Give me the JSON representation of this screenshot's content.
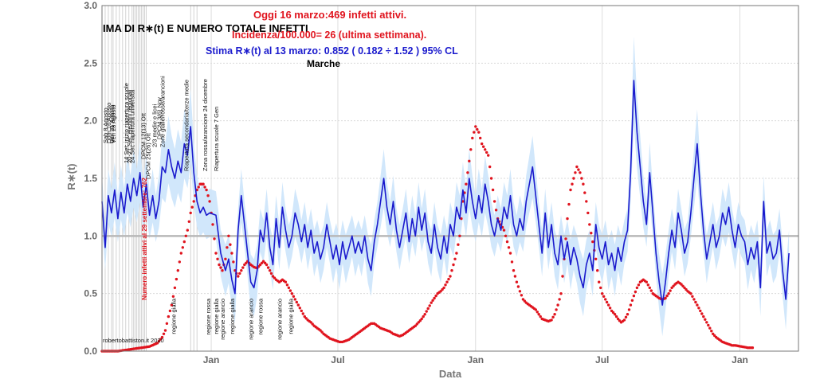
{
  "chart_data": {
    "type": "line",
    "title_lines": [
      {
        "text": "IMA DI R∗(t) E NUMERO TOTALE INFETTI",
        "color": "#000000"
      },
      {
        "text": "Oggi 16 marzo:469 infetti attivi.",
        "color": "#e0141e"
      },
      {
        "text": "Incidenza/100.000= 26 (ultima settimana).",
        "color": "#e0141e"
      },
      {
        "text": "Stima R∗(t) al 13 marzo: 0.852 ( 0.182 ÷ 1.52 ) 95% CL",
        "color": "#1a1acd"
      },
      {
        "text": "Marche",
        "color": "#000000"
      }
    ],
    "xlabel": "Data",
    "ylabel": "R∗(t)",
    "ylim": [
      0,
      3
    ],
    "yticks": [
      "0.0",
      "0.5",
      "1.0",
      "1.5",
      "2.0",
      "2.5",
      "3.0"
    ],
    "xticks": [
      "Jan",
      "Jul",
      "Jan",
      "Jul",
      "Jan"
    ],
    "reference_line": 1.0,
    "grid": true,
    "credit": "robertobattiston.it 2020",
    "side_note": "Numero infetti attivi al 29 settembre: 762",
    "series": [],
    "blue_points": [
      [
        0,
        1.3
      ],
      [
        2,
        0.9
      ],
      [
        4,
        1.35
      ],
      [
        6,
        1.2
      ],
      [
        8,
        1.4
      ],
      [
        10,
        1.15
      ],
      [
        12,
        1.38
      ],
      [
        14,
        1.2
      ],
      [
        16,
        1.45
      ],
      [
        18,
        1.3
      ],
      [
        20,
        1.5
      ],
      [
        22,
        1.35
      ],
      [
        24,
        1.55
      ],
      [
        26,
        1.25
      ],
      [
        28,
        1.45
      ],
      [
        30,
        1.18
      ],
      [
        32,
        1.35
      ],
      [
        34,
        1.15
      ],
      [
        36,
        1.3
      ],
      [
        38,
        1.6
      ],
      [
        40,
        1.55
      ],
      [
        42,
        1.75
      ],
      [
        44,
        1.6
      ],
      [
        46,
        1.5
      ],
      [
        48,
        1.65
      ],
      [
        50,
        1.55
      ],
      [
        52,
        1.8
      ],
      [
        54,
        1.7
      ],
      [
        56,
        1.95
      ],
      [
        58,
        1.55
      ],
      [
        60,
        1.3
      ],
      [
        62,
        1.2
      ],
      [
        64,
        1.25
      ],
      [
        66,
        1.18
      ],
      [
        68,
        1.2
      ],
      [
        72,
        1.18
      ],
      [
        75,
        0.85
      ],
      [
        78,
        0.7
      ],
      [
        80,
        0.8
      ],
      [
        82,
        0.62
      ],
      [
        84,
        0.5
      ],
      [
        86,
        1.05
      ],
      [
        88,
        1.35
      ],
      [
        90,
        1.1
      ],
      [
        92,
        0.85
      ],
      [
        94,
        0.6
      ],
      [
        96,
        0.55
      ],
      [
        98,
        0.7
      ],
      [
        100,
        1.05
      ],
      [
        102,
        0.95
      ],
      [
        104,
        1.2
      ],
      [
        106,
        0.9
      ],
      [
        108,
        0.75
      ],
      [
        110,
        1.15
      ],
      [
        112,
        0.9
      ],
      [
        114,
        1.25
      ],
      [
        116,
        1.05
      ],
      [
        118,
        0.9
      ],
      [
        120,
        1.0
      ],
      [
        122,
        1.2
      ],
      [
        124,
        1.1
      ],
      [
        126,
        0.95
      ],
      [
        128,
        1.1
      ],
      [
        130,
        0.9
      ],
      [
        132,
        1.05
      ],
      [
        134,
        0.85
      ],
      [
        136,
        0.95
      ],
      [
        138,
        0.8
      ],
      [
        140,
        0.9
      ],
      [
        142,
        1.1
      ],
      [
        144,
        0.95
      ],
      [
        146,
        0.8
      ],
      [
        148,
        0.92
      ],
      [
        150,
        0.75
      ],
      [
        152,
        0.95
      ],
      [
        154,
        0.8
      ],
      [
        156,
        0.9
      ],
      [
        158,
        1.0
      ],
      [
        160,
        0.85
      ],
      [
        162,
        0.95
      ],
      [
        164,
        0.85
      ],
      [
        166,
        1.0
      ],
      [
        168,
        0.8
      ],
      [
        170,
        0.7
      ],
      [
        172,
        0.95
      ],
      [
        174,
        1.1
      ],
      [
        176,
        1.3
      ],
      [
        178,
        1.5
      ],
      [
        180,
        1.25
      ],
      [
        182,
        1.1
      ],
      [
        184,
        1.3
      ],
      [
        186,
        1.05
      ],
      [
        188,
        0.9
      ],
      [
        190,
        1.05
      ],
      [
        192,
        1.2
      ],
      [
        194,
        0.95
      ],
      [
        196,
        1.15
      ],
      [
        198,
        1.0
      ],
      [
        200,
        1.25
      ],
      [
        202,
        1.05
      ],
      [
        204,
        1.2
      ],
      [
        206,
        0.95
      ],
      [
        208,
        0.85
      ],
      [
        210,
        1.1
      ],
      [
        212,
        0.9
      ],
      [
        214,
        0.8
      ],
      [
        216,
        1.0
      ],
      [
        218,
        0.85
      ],
      [
        220,
        1.1
      ],
      [
        222,
        1.0
      ],
      [
        224,
        1.25
      ],
      [
        226,
        1.15
      ],
      [
        228,
        1.4
      ],
      [
        230,
        1.2
      ],
      [
        232,
        1.5
      ],
      [
        234,
        1.3
      ],
      [
        236,
        1.15
      ],
      [
        238,
        1.35
      ],
      [
        240,
        1.2
      ],
      [
        242,
        1.45
      ],
      [
        244,
        1.3
      ],
      [
        246,
        1.1
      ],
      [
        248,
        1.0
      ],
      [
        250,
        1.15
      ],
      [
        252,
        1.05
      ],
      [
        254,
        1.25
      ],
      [
        256,
        1.15
      ],
      [
        258,
        1.35
      ],
      [
        260,
        1.1
      ],
      [
        262,
        1.0
      ],
      [
        264,
        1.15
      ],
      [
        266,
        1.05
      ],
      [
        268,
        1.3
      ],
      [
        270,
        1.45
      ],
      [
        272,
        1.6
      ],
      [
        274,
        1.35
      ],
      [
        276,
        1.1
      ],
      [
        278,
        0.85
      ],
      [
        280,
        1.2
      ],
      [
        282,
        0.9
      ],
      [
        284,
        1.1
      ],
      [
        286,
        0.85
      ],
      [
        288,
        0.75
      ],
      [
        290,
        1.0
      ],
      [
        292,
        0.8
      ],
      [
        294,
        0.95
      ],
      [
        296,
        0.75
      ],
      [
        298,
        0.9
      ],
      [
        300,
        0.8
      ],
      [
        302,
        0.65
      ],
      [
        304,
        0.55
      ],
      [
        306,
        0.75
      ],
      [
        308,
        0.85
      ],
      [
        310,
        0.7
      ],
      [
        312,
        1.1
      ],
      [
        314,
        0.9
      ],
      [
        316,
        0.8
      ],
      [
        318,
        0.95
      ],
      [
        320,
        0.75
      ],
      [
        322,
        0.85
      ],
      [
        324,
        0.7
      ],
      [
        326,
        0.9
      ],
      [
        328,
        0.78
      ],
      [
        330,
        0.95
      ],
      [
        332,
        1.05
      ],
      [
        334,
        1.55
      ],
      [
        336,
        2.35
      ],
      [
        338,
        1.9
      ],
      [
        340,
        1.6
      ],
      [
        342,
        1.3
      ],
      [
        344,
        1.1
      ],
      [
        346,
        1.55
      ],
      [
        348,
        1.2
      ],
      [
        350,
        0.85
      ],
      [
        352,
        0.6
      ],
      [
        354,
        0.4
      ],
      [
        356,
        0.6
      ],
      [
        358,
        0.85
      ],
      [
        360,
        1.05
      ],
      [
        362,
        0.9
      ],
      [
        364,
        1.2
      ],
      [
        366,
        1.05
      ],
      [
        368,
        0.85
      ],
      [
        370,
        0.95
      ],
      [
        372,
        1.2
      ],
      [
        374,
        1.5
      ],
      [
        376,
        1.8
      ],
      [
        378,
        1.4
      ],
      [
        380,
        1.05
      ],
      [
        382,
        0.8
      ],
      [
        384,
        0.95
      ],
      [
        386,
        1.1
      ],
      [
        388,
        0.9
      ],
      [
        390,
        1.0
      ],
      [
        392,
        1.2
      ],
      [
        394,
        1.1
      ],
      [
        396,
        1.25
      ],
      [
        398,
        1.05
      ],
      [
        400,
        0.9
      ],
      [
        402,
        1.1
      ],
      [
        404,
        1.0
      ],
      [
        406,
        0.95
      ],
      [
        408,
        0.75
      ],
      [
        410,
        0.9
      ],
      [
        412,
        0.8
      ],
      [
        414,
        0.95
      ],
      [
        416,
        0.55
      ],
      [
        418,
        1.3
      ],
      [
        420,
        0.85
      ],
      [
        422,
        0.95
      ],
      [
        424,
        0.8
      ],
      [
        426,
        0.85
      ],
      [
        428,
        1.05
      ],
      [
        430,
        0.7
      ],
      [
        432,
        0.45
      ],
      [
        434,
        0.85
      ]
    ],
    "red_points": [
      [
        0,
        0.0
      ],
      [
        10,
        0.0
      ],
      [
        20,
        0.02
      ],
      [
        30,
        0.04
      ],
      [
        35,
        0.07
      ],
      [
        38,
        0.12
      ],
      [
        40,
        0.18
      ],
      [
        42,
        0.3
      ],
      [
        44,
        0.4
      ],
      [
        46,
        0.55
      ],
      [
        48,
        0.7
      ],
      [
        50,
        0.85
      ],
      [
        52,
        0.95
      ],
      [
        54,
        1.05
      ],
      [
        56,
        1.2
      ],
      [
        58,
        1.3
      ],
      [
        60,
        1.4
      ],
      [
        62,
        1.45
      ],
      [
        64,
        1.45
      ],
      [
        66,
        1.4
      ],
      [
        68,
        1.3
      ],
      [
        70,
        1.1
      ],
      [
        72,
        0.85
      ],
      [
        74,
        0.75
      ],
      [
        76,
        0.7
      ],
      [
        78,
        0.8
      ],
      [
        80,
        1.0
      ],
      [
        82,
        0.85
      ],
      [
        84,
        0.7
      ],
      [
        86,
        0.65
      ],
      [
        88,
        0.7
      ],
      [
        90,
        0.75
      ],
      [
        92,
        0.78
      ],
      [
        94,
        0.75
      ],
      [
        96,
        0.73
      ],
      [
        98,
        0.72
      ],
      [
        100,
        0.75
      ],
      [
        102,
        0.78
      ],
      [
        104,
        0.75
      ],
      [
        106,
        0.7
      ],
      [
        108,
        0.65
      ],
      [
        110,
        0.62
      ],
      [
        112,
        0.6
      ],
      [
        114,
        0.62
      ],
      [
        116,
        0.6
      ],
      [
        118,
        0.55
      ],
      [
        120,
        0.5
      ],
      [
        122,
        0.45
      ],
      [
        124,
        0.4
      ],
      [
        126,
        0.35
      ],
      [
        128,
        0.3
      ],
      [
        130,
        0.27
      ],
      [
        132,
        0.25
      ],
      [
        134,
        0.22
      ],
      [
        136,
        0.2
      ],
      [
        138,
        0.18
      ],
      [
        140,
        0.15
      ],
      [
        142,
        0.13
      ],
      [
        144,
        0.11
      ],
      [
        146,
        0.1
      ],
      [
        148,
        0.09
      ],
      [
        150,
        0.08
      ],
      [
        152,
        0.08
      ],
      [
        154,
        0.09
      ],
      [
        156,
        0.1
      ],
      [
        158,
        0.12
      ],
      [
        160,
        0.14
      ],
      [
        162,
        0.16
      ],
      [
        164,
        0.18
      ],
      [
        166,
        0.2
      ],
      [
        168,
        0.22
      ],
      [
        170,
        0.24
      ],
      [
        172,
        0.24
      ],
      [
        174,
        0.22
      ],
      [
        176,
        0.2
      ],
      [
        178,
        0.19
      ],
      [
        180,
        0.18
      ],
      [
        182,
        0.17
      ],
      [
        184,
        0.15
      ],
      [
        186,
        0.14
      ],
      [
        188,
        0.13
      ],
      [
        190,
        0.14
      ],
      [
        192,
        0.16
      ],
      [
        194,
        0.18
      ],
      [
        196,
        0.2
      ],
      [
        198,
        0.22
      ],
      [
        200,
        0.25
      ],
      [
        202,
        0.28
      ],
      [
        204,
        0.32
      ],
      [
        206,
        0.37
      ],
      [
        208,
        0.42
      ],
      [
        210,
        0.46
      ],
      [
        212,
        0.5
      ],
      [
        214,
        0.52
      ],
      [
        216,
        0.55
      ],
      [
        218,
        0.6
      ],
      [
        220,
        0.65
      ],
      [
        222,
        0.75
      ],
      [
        224,
        0.85
      ],
      [
        226,
        1.0
      ],
      [
        228,
        1.3
      ],
      [
        230,
        1.45
      ],
      [
        232,
        1.65
      ],
      [
        234,
        1.85
      ],
      [
        236,
        1.95
      ],
      [
        238,
        1.9
      ],
      [
        240,
        1.8
      ],
      [
        242,
        1.75
      ],
      [
        244,
        1.7
      ],
      [
        246,
        1.5
      ],
      [
        248,
        1.3
      ],
      [
        250,
        1.15
      ],
      [
        252,
        1.1
      ],
      [
        254,
        1.05
      ],
      [
        256,
        0.95
      ],
      [
        258,
        0.85
      ],
      [
        260,
        0.7
      ],
      [
        262,
        0.6
      ],
      [
        264,
        0.52
      ],
      [
        266,
        0.45
      ],
      [
        268,
        0.42
      ],
      [
        270,
        0.4
      ],
      [
        272,
        0.38
      ],
      [
        274,
        0.36
      ],
      [
        276,
        0.32
      ],
      [
        278,
        0.28
      ],
      [
        280,
        0.27
      ],
      [
        282,
        0.26
      ],
      [
        284,
        0.27
      ],
      [
        286,
        0.32
      ],
      [
        288,
        0.4
      ],
      [
        290,
        0.5
      ],
      [
        292,
        0.8
      ],
      [
        294,
        1.15
      ],
      [
        296,
        1.4
      ],
      [
        298,
        1.5
      ],
      [
        300,
        1.6
      ],
      [
        302,
        1.55
      ],
      [
        304,
        1.45
      ],
      [
        306,
        1.3
      ],
      [
        308,
        1.1
      ],
      [
        310,
        0.95
      ],
      [
        312,
        0.8
      ],
      [
        314,
        0.6
      ],
      [
        316,
        0.5
      ],
      [
        318,
        0.45
      ],
      [
        320,
        0.4
      ],
      [
        322,
        0.35
      ],
      [
        324,
        0.32
      ],
      [
        326,
        0.28
      ],
      [
        328,
        0.25
      ],
      [
        330,
        0.27
      ],
      [
        332,
        0.32
      ],
      [
        334,
        0.4
      ],
      [
        336,
        0.48
      ],
      [
        338,
        0.55
      ],
      [
        340,
        0.6
      ],
      [
        342,
        0.62
      ],
      [
        344,
        0.6
      ],
      [
        346,
        0.55
      ],
      [
        348,
        0.5
      ],
      [
        350,
        0.48
      ],
      [
        352,
        0.46
      ],
      [
        354,
        0.45
      ],
      [
        356,
        0.46
      ],
      [
        358,
        0.5
      ],
      [
        360,
        0.55
      ],
      [
        362,
        0.58
      ],
      [
        364,
        0.6
      ],
      [
        366,
        0.58
      ],
      [
        368,
        0.55
      ],
      [
        370,
        0.52
      ],
      [
        372,
        0.5
      ],
      [
        374,
        0.45
      ],
      [
        376,
        0.4
      ],
      [
        378,
        0.35
      ],
      [
        380,
        0.3
      ],
      [
        382,
        0.25
      ],
      [
        384,
        0.2
      ],
      [
        386,
        0.15
      ],
      [
        388,
        0.12
      ],
      [
        390,
        0.1
      ],
      [
        392,
        0.08
      ],
      [
        394,
        0.07
      ],
      [
        396,
        0.06
      ],
      [
        398,
        0.05
      ],
      [
        400,
        0.05
      ],
      [
        404,
        0.04
      ],
      [
        408,
        0.03
      ],
      [
        412,
        0.03
      ]
    ],
    "band_halfwidth": 0.18,
    "annotations_top": [
      "Sab 8 Agosto",
      "Dom 16 Agosto",
      "Ven 21 Agosto",
      "Ven 28 Agosto",
      "14 Set: inizio riapertura scuole",
      "20-21 Set: elezioni regionali",
      "24 Set: riapertura universita",
      "DPCM 12(13) Ott",
      "DPCM 25(26) Ott",
      "2/3 medie e licei",
      "DPCM 3(6) Nov",
      "Zone gialle/rosse/arancioni",
      "Riapertura secondaria/terze medie",
      "Zona rossa/arancione 24 dicembre",
      "Riapertura scuole 7 Gen"
    ],
    "annotations_bottom": [
      "regione gialla",
      "regione rossa",
      "regione gialla",
      "regione arancio",
      "regione gialla",
      "regione arancio",
      "regione rossa",
      "regione arancio",
      "regione gialla"
    ]
  }
}
